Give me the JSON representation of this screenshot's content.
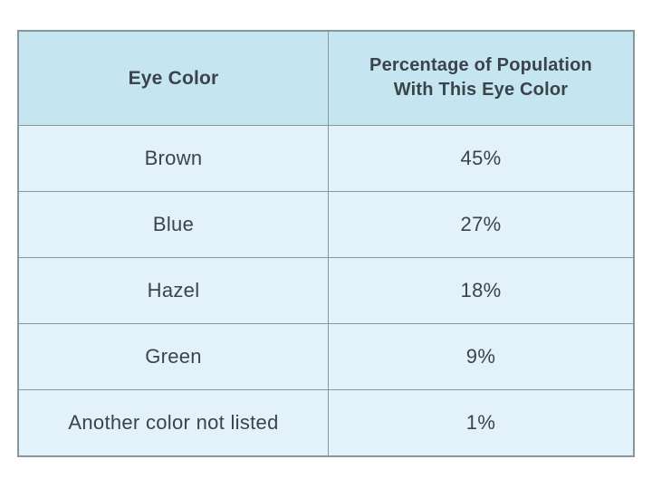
{
  "theme": {
    "header_bg": "#c5e6f1",
    "row_bg": "#e3f1fa",
    "border": "#87979f",
    "text": "#3b434b",
    "page_bg": "#ffffff"
  },
  "table": {
    "header": {
      "col1": "Eye Color",
      "col2_line1": "Percentage of Population",
      "col2_line2": "With This Eye Color"
    },
    "rows": [
      {
        "label": "Brown",
        "value": "45%"
      },
      {
        "label": "Blue",
        "value": "27%"
      },
      {
        "label": "Hazel",
        "value": "18%"
      },
      {
        "label": "Green",
        "value": "9%"
      },
      {
        "label": "Another color not listed",
        "value": "1%"
      }
    ]
  },
  "chart_data": {
    "type": "table",
    "title": "",
    "columns": [
      "Eye Color",
      "Percentage of Population With This Eye Color"
    ],
    "categories": [
      "Brown",
      "Blue",
      "Hazel",
      "Green",
      "Another color not listed"
    ],
    "values": [
      45,
      27,
      18,
      9,
      1
    ],
    "value_unit": "%",
    "layout_hints": {
      "header_fill": "#c5e6f1",
      "body_fill": "#e3f1fa",
      "grid": "on",
      "alignment": "center"
    }
  }
}
